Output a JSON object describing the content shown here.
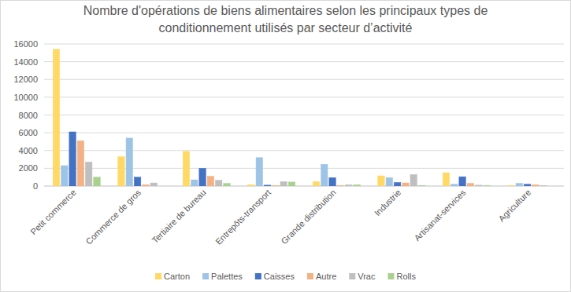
{
  "chart_data": {
    "type": "bar",
    "title": "Nombre d'opérations de biens alimentaires selon les principaux types  de conditionnement utilisés par secteur d’activité",
    "categories": [
      "Petit commerce",
      "Commerce de gros",
      "Tertiaire de bureau",
      "Entrepôts-transport",
      "Grande distribution",
      "Industrie",
      "Artisanat-services",
      "Agriculture"
    ],
    "series": [
      {
        "name": "Carton",
        "color": "#ffd966",
        "values": [
          15400,
          3300,
          3900,
          150,
          500,
          1150,
          1500,
          50
        ]
      },
      {
        "name": "Palettes",
        "color": "#9dc3e6",
        "values": [
          2300,
          5400,
          700,
          3200,
          2450,
          950,
          200,
          300
        ]
      },
      {
        "name": "Caisses",
        "color": "#4472c4",
        "values": [
          6100,
          1000,
          2000,
          100,
          950,
          400,
          1050,
          200
        ]
      },
      {
        "name": "Autre",
        "color": "#f4b183",
        "values": [
          5100,
          150,
          1100,
          50,
          50,
          350,
          300,
          150
        ]
      },
      {
        "name": "Vrac",
        "color": "#bfbfbf",
        "values": [
          2700,
          350,
          650,
          500,
          150,
          1300,
          100,
          50
        ]
      },
      {
        "name": "Rolls",
        "color": "#a9d18e",
        "values": [
          1000,
          0,
          300,
          450,
          150,
          50,
          50,
          0
        ]
      }
    ],
    "ylim": [
      0,
      16000
    ],
    "yticks": [
      0,
      2000,
      4000,
      6000,
      8000,
      10000,
      12000,
      14000,
      16000
    ],
    "grid": true,
    "legend": "bottom"
  }
}
